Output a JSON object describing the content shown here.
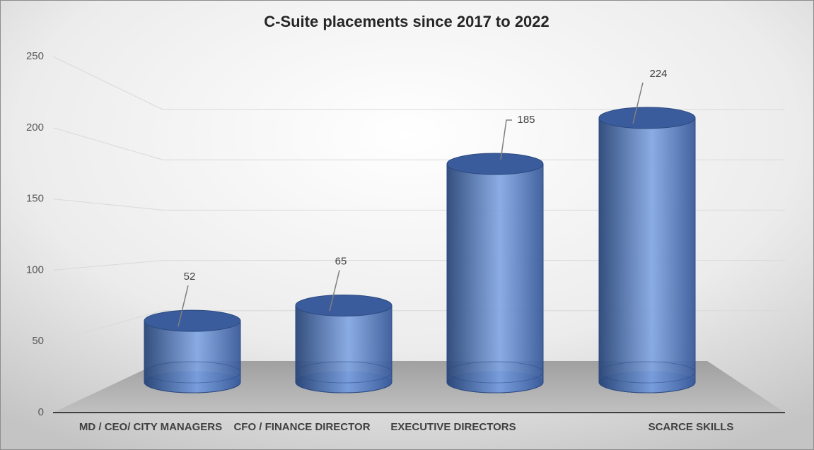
{
  "chart_data": {
    "type": "cylinder-bar",
    "title": "C-Suite placements since 2017 to 2022",
    "categories": [
      "MD / CEO/ CITY MANAGERS",
      "CFO / FINANCE DIRECTOR",
      "EXECUTIVE DIRECTORS",
      "SCARCE SKILLS"
    ],
    "values": [
      52,
      65,
      185,
      224
    ],
    "color": "#4f73b5",
    "ylim": [
      0,
      250
    ],
    "yticks": [
      0,
      50,
      100,
      150,
      200,
      250
    ],
    "grid": true
  }
}
